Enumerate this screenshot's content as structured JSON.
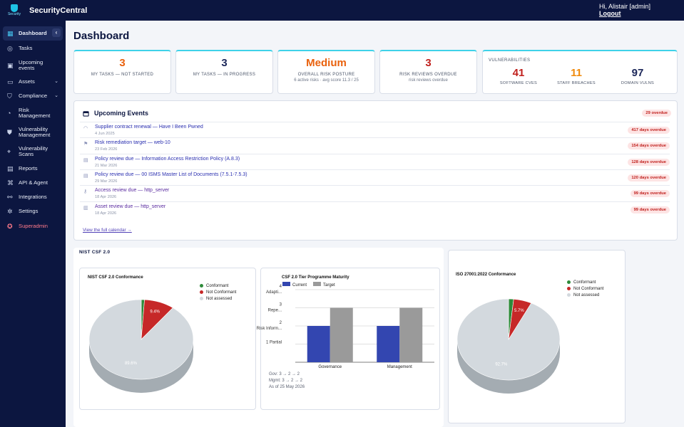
{
  "brand": {
    "logo_text": "Security",
    "name": "SecurityCentral"
  },
  "user": {
    "greeting": "Hi, Alistair [admin]",
    "logout": "Logout"
  },
  "sidebar": {
    "items": [
      {
        "label": "Dashboard",
        "icon": "dashboard-icon",
        "active": true
      },
      {
        "label": "Tasks",
        "icon": "check-circle-icon"
      },
      {
        "label": "Upcoming events",
        "icon": "calendar-icon"
      },
      {
        "label": "Assets",
        "icon": "laptop-icon",
        "caret": "⌄"
      },
      {
        "label": "Compliance",
        "icon": "shield-check-icon",
        "caret": "⌄"
      },
      {
        "label": "Risk Management",
        "icon": "gauge-icon"
      },
      {
        "label": "Vulnerability Management",
        "icon": "shield-icon"
      },
      {
        "label": "Vulnerability Scans",
        "icon": "scan-icon"
      },
      {
        "label": "Reports",
        "icon": "report-icon"
      },
      {
        "label": "API & Agent",
        "icon": "code-icon"
      },
      {
        "label": "Integrations",
        "icon": "integrations-icon"
      },
      {
        "label": "Settings",
        "icon": "gear-icon"
      },
      {
        "label": "Superadmin",
        "icon": "superadmin-icon"
      }
    ],
    "collapse": "‹"
  },
  "dashboard": {
    "title": "Dashboard"
  },
  "stats": [
    {
      "value": "3",
      "label": "MY TASKS — NOT STARTED",
      "sub": "",
      "color": "#e9610d"
    },
    {
      "value": "3",
      "label": "MY TASKS — IN PROGRESS",
      "sub": "",
      "color": "#1b2659"
    },
    {
      "value": "Medium",
      "label": "OVERALL RISK POSTURE",
      "sub": "6 active risks · avg score 11.3 / 25",
      "color": "#e9610d"
    },
    {
      "value": "3",
      "label": "RISK REVIEWS OVERDUE",
      "sub": "risk reviews overdue",
      "color": "#c0201d"
    }
  ],
  "vulnerabilities": {
    "heading": "VULNERABILITIES",
    "items": [
      {
        "value": "41",
        "label": "SOFTWARE CVES",
        "color": "#c0201d"
      },
      {
        "value": "11",
        "label": "STAFF BREACHES",
        "color": "#f08a0b"
      },
      {
        "value": "97",
        "label": "DOMAIN VULNS",
        "color": "#1b2659"
      }
    ]
  },
  "events": {
    "title": "Upcoming Events",
    "overdue_badge": "29 overdue",
    "link": "View the full calendar →",
    "items": [
      {
        "title": "Supplier contract renewal — Have I Been Pwned",
        "date": "4 Jun 2025",
        "badge": "417 days overdue",
        "icon": "wifi-icon"
      },
      {
        "title": "Risk remediation target — web-10",
        "date": "23 Feb 2026",
        "badge": "154 days overdue",
        "icon": "flag-icon"
      },
      {
        "title": "Policy review due — Information Access Restriction Policy (A.8.3)",
        "date": "21 Mar 2026",
        "badge": "128 days overdue",
        "icon": "document-icon"
      },
      {
        "title": "Policy review due — 00 ISMS Master List of Documents (7.5.1-7.5.3)",
        "date": "29 Mar 2026",
        "badge": "120 days overdue",
        "icon": "document-icon"
      },
      {
        "title": "Access review due — http_server",
        "date": "18 Apr 2026",
        "badge": "99 days overdue",
        "icon": "key-icon"
      },
      {
        "title": "Asset review due — http_server",
        "date": "18 Apr 2026",
        "badge": "99 days overdue",
        "icon": "server-icon"
      }
    ]
  },
  "nist_section": {
    "label": "NIST CSF 2.0"
  },
  "charts": {
    "pie_nist": {
      "title": "NIST CSF 2.0 Conformance",
      "legend": [
        "Conformant",
        "Not Conformant",
        "Not assessed"
      ],
      "labels": [
        "9.4%",
        "89.6%"
      ]
    },
    "bar": {
      "title": "CSF 2.0 Tier Programme Maturity",
      "legend": [
        "Current",
        "Target"
      ],
      "yticks": [
        "1 Partial",
        "2 Risk Inform...",
        "3 Repe...",
        "4 Adapti..."
      ],
      "categories": [
        "Governance",
        "Management"
      ],
      "notes": [
        "Gov: 3 → 2 → 2",
        "Mgmt: 3 → 2 → 2",
        "As of 25 May 2026"
      ]
    },
    "pie_iso": {
      "title": "ISO 27001:2022 Conformance",
      "legend": [
        "Conformant",
        "Not Conformant",
        "Not assessed"
      ],
      "labels": [
        "5.7%",
        "92.7%"
      ]
    }
  },
  "chart_data": [
    {
      "type": "pie",
      "title": "NIST CSF 2.0 Conformance",
      "labels": [
        "Conformant",
        "Not Conformant",
        "Not assessed"
      ],
      "values": [
        1.0,
        9.4,
        89.6
      ],
      "colors": [
        "#2e8b3a",
        "#c62828",
        "#d3d9de"
      ],
      "legend": "top-right"
    },
    {
      "type": "bar",
      "title": "CSF 2.0 Tier Programme Maturity",
      "categories": [
        "Governance",
        "Management"
      ],
      "series": [
        {
          "name": "Current",
          "values": [
            2,
            2
          ],
          "color": "#3346b0"
        },
        {
          "name": "Target",
          "values": [
            3,
            3
          ],
          "color": "#9a9a9a"
        }
      ],
      "ylim": [
        0,
        4
      ],
      "yticks": [
        "1 Partial",
        "2 Risk Inform...",
        "3 Repe...",
        "4 Adapti..."
      ],
      "legend": "top-left",
      "grid": true
    },
    {
      "type": "pie",
      "title": "ISO 27001:2022 Conformance",
      "labels": [
        "Conformant",
        "Not Conformant",
        "Not assessed"
      ],
      "values": [
        1.6,
        5.7,
        92.7
      ],
      "colors": [
        "#2e8b3a",
        "#c62828",
        "#d3d9de"
      ],
      "legend": "top-right"
    }
  ]
}
